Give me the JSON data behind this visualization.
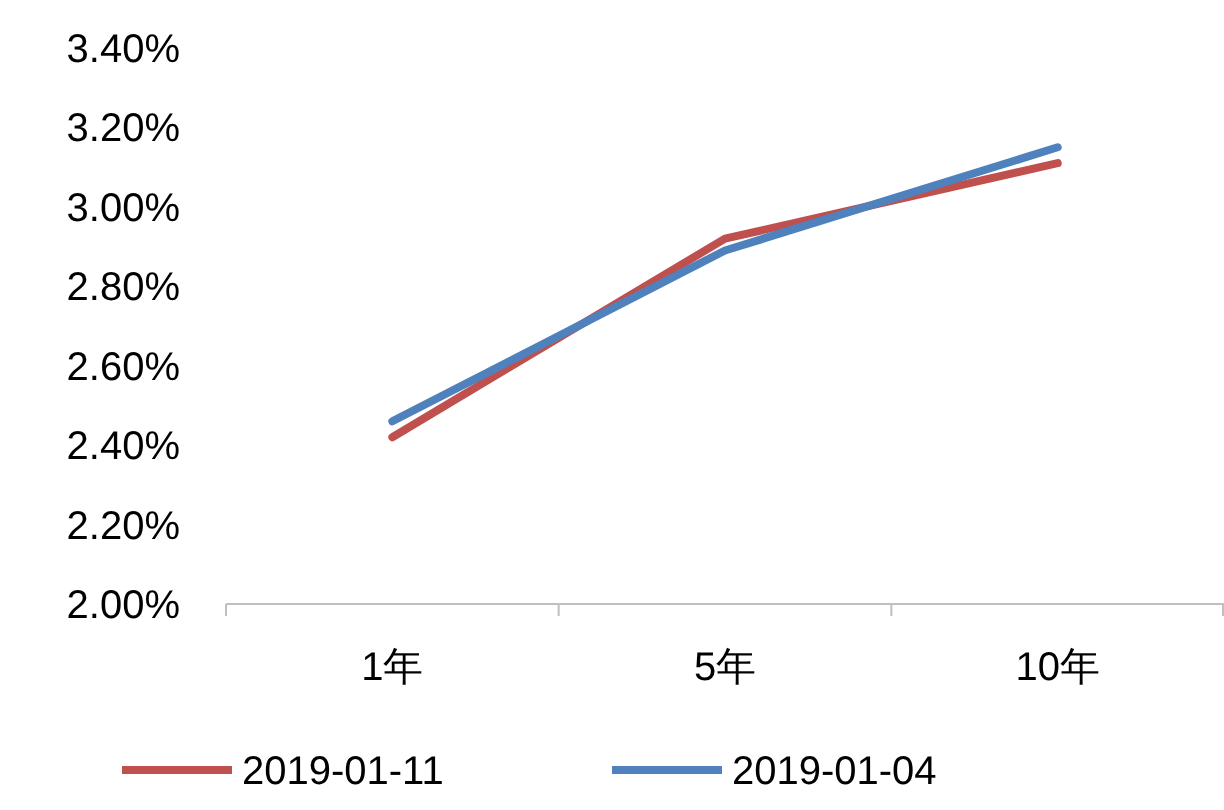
{
  "chart_data": {
    "type": "line",
    "categories": [
      "1年",
      "5年",
      "10年"
    ],
    "series": [
      {
        "name": "2019-01-11",
        "color": "#c0504d",
        "values": [
          2.42,
          2.92,
          3.11
        ]
      },
      {
        "name": "2019-01-04",
        "color": "#4f81bd",
        "values": [
          2.46,
          2.89,
          3.15
        ]
      }
    ],
    "ylim": [
      2.0,
      3.4
    ],
    "yticks": [
      {
        "value": 2.0,
        "label": "2.00%"
      },
      {
        "value": 2.2,
        "label": "2.20%"
      },
      {
        "value": 2.4,
        "label": "2.40%"
      },
      {
        "value": 2.6,
        "label": "2.60%"
      },
      {
        "value": 2.8,
        "label": "2.80%"
      },
      {
        "value": 3.0,
        "label": "3.00%"
      },
      {
        "value": 3.2,
        "label": "3.20%"
      },
      {
        "value": 3.4,
        "label": "3.40%"
      }
    ],
    "grid": false,
    "legend": "bottom",
    "marker": "none",
    "line_style": "solid"
  }
}
